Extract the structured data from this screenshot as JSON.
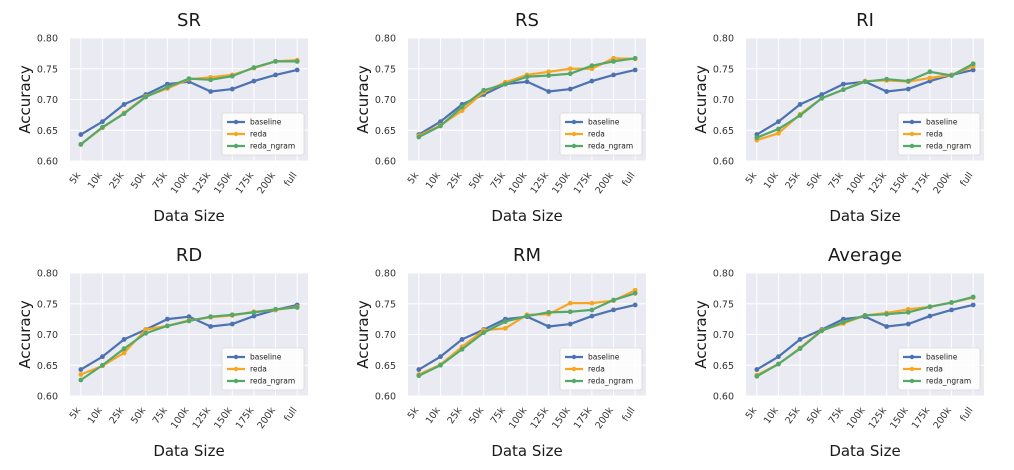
{
  "colors": {
    "background": "#eaeaf2",
    "grid": "#ffffff",
    "baseline": "#4c72b0",
    "reda": "#f6a623",
    "reda_ngram": "#55a868"
  },
  "chart_data": [
    {
      "type": "line",
      "title": "SR",
      "xlabel": "Data Size",
      "ylabel": "Accuracy",
      "ylim": [
        0.6,
        0.8
      ],
      "yticks": [
        "0.60",
        "0.65",
        "0.70",
        "0.75",
        "0.80"
      ],
      "categories": [
        "5k",
        "10k",
        "25k",
        "50k",
        "75k",
        "100k",
        "125k",
        "150k",
        "175k",
        "200k",
        "full"
      ],
      "grid": true,
      "legend": "lower-right",
      "series": [
        {
          "name": "baseline",
          "color": "#4c72b0",
          "values": [
            0.643,
            0.664,
            0.692,
            0.708,
            0.725,
            0.729,
            0.713,
            0.717,
            0.73,
            0.74,
            0.748
          ]
        },
        {
          "name": "reda",
          "color": "#f6a623",
          "values": [
            0.627,
            0.654,
            0.678,
            0.705,
            0.718,
            0.733,
            0.736,
            0.74,
            0.751,
            0.762,
            0.764
          ]
        },
        {
          "name": "reda_ngram",
          "color": "#55a868",
          "values": [
            0.627,
            0.655,
            0.677,
            0.704,
            0.72,
            0.734,
            0.732,
            0.738,
            0.752,
            0.762,
            0.762
          ]
        }
      ]
    },
    {
      "type": "line",
      "title": "RS",
      "xlabel": "Data Size",
      "ylabel": "Accuracy",
      "ylim": [
        0.6,
        0.8
      ],
      "yticks": [
        "0.60",
        "0.65",
        "0.70",
        "0.75",
        "0.80"
      ],
      "categories": [
        "5k",
        "10k",
        "25k",
        "50k",
        "75k",
        "100k",
        "125k",
        "150k",
        "175k",
        "200k",
        "full"
      ],
      "grid": true,
      "legend": "lower-right",
      "series": [
        {
          "name": "baseline",
          "color": "#4c72b0",
          "values": [
            0.643,
            0.664,
            0.692,
            0.708,
            0.725,
            0.729,
            0.713,
            0.717,
            0.73,
            0.74,
            0.748
          ]
        },
        {
          "name": "reda",
          "color": "#f6a623",
          "values": [
            0.641,
            0.658,
            0.682,
            0.712,
            0.728,
            0.74,
            0.745,
            0.75,
            0.75,
            0.767,
            0.766
          ]
        },
        {
          "name": "reda_ngram",
          "color": "#55a868",
          "values": [
            0.639,
            0.657,
            0.688,
            0.715,
            0.725,
            0.737,
            0.739,
            0.742,
            0.755,
            0.762,
            0.767
          ]
        }
      ]
    },
    {
      "type": "line",
      "title": "RI",
      "xlabel": "Data Size",
      "ylabel": "Accuracy",
      "ylim": [
        0.6,
        0.8
      ],
      "yticks": [
        "0.60",
        "0.65",
        "0.70",
        "0.75",
        "0.80"
      ],
      "categories": [
        "5k",
        "10k",
        "25k",
        "50k",
        "75k",
        "100k",
        "125k",
        "150k",
        "175k",
        "200k",
        "full"
      ],
      "grid": true,
      "legend": "lower-right",
      "series": [
        {
          "name": "baseline",
          "color": "#4c72b0",
          "values": [
            0.643,
            0.664,
            0.692,
            0.708,
            0.725,
            0.729,
            0.713,
            0.717,
            0.73,
            0.74,
            0.748
          ]
        },
        {
          "name": "reda",
          "color": "#f6a623",
          "values": [
            0.634,
            0.645,
            0.676,
            0.702,
            0.716,
            0.73,
            0.731,
            0.729,
            0.735,
            0.74,
            0.754
          ]
        },
        {
          "name": "reda_ngram",
          "color": "#55a868",
          "values": [
            0.638,
            0.652,
            0.674,
            0.702,
            0.716,
            0.729,
            0.733,
            0.73,
            0.745,
            0.739,
            0.758
          ]
        }
      ]
    },
    {
      "type": "line",
      "title": "RD",
      "xlabel": "Data Size",
      "ylabel": "Accuracy",
      "ylim": [
        0.6,
        0.8
      ],
      "yticks": [
        "0.60",
        "0.65",
        "0.70",
        "0.75",
        "0.80"
      ],
      "categories": [
        "5k",
        "10k",
        "25k",
        "50k",
        "75k",
        "100k",
        "125k",
        "150k",
        "175k",
        "200k",
        "full"
      ],
      "grid": true,
      "legend": "lower-right",
      "series": [
        {
          "name": "baseline",
          "color": "#4c72b0",
          "values": [
            0.643,
            0.664,
            0.692,
            0.708,
            0.725,
            0.729,
            0.713,
            0.717,
            0.73,
            0.74,
            0.748
          ]
        },
        {
          "name": "reda",
          "color": "#f6a623",
          "values": [
            0.635,
            0.649,
            0.67,
            0.708,
            0.714,
            0.723,
            0.728,
            0.731,
            0.737,
            0.74,
            0.745
          ]
        },
        {
          "name": "reda_ngram",
          "color": "#55a868",
          "values": [
            0.626,
            0.65,
            0.677,
            0.702,
            0.714,
            0.722,
            0.729,
            0.732,
            0.736,
            0.741,
            0.744
          ]
        }
      ]
    },
    {
      "type": "line",
      "title": "RM",
      "xlabel": "Data Size",
      "ylabel": "Accuracy",
      "ylim": [
        0.6,
        0.8
      ],
      "yticks": [
        "0.60",
        "0.65",
        "0.70",
        "0.75",
        "0.80"
      ],
      "categories": [
        "5k",
        "10k",
        "25k",
        "50k",
        "75k",
        "100k",
        "125k",
        "150k",
        "175k",
        "200k",
        "full"
      ],
      "grid": true,
      "legend": "lower-right",
      "series": [
        {
          "name": "baseline",
          "color": "#4c72b0",
          "values": [
            0.643,
            0.664,
            0.692,
            0.708,
            0.725,
            0.729,
            0.713,
            0.717,
            0.73,
            0.74,
            0.748
          ]
        },
        {
          "name": "reda",
          "color": "#f6a623",
          "values": [
            0.635,
            0.651,
            0.68,
            0.707,
            0.71,
            0.732,
            0.733,
            0.751,
            0.751,
            0.755,
            0.772
          ]
        },
        {
          "name": "reda_ngram",
          "color": "#55a868",
          "values": [
            0.633,
            0.65,
            0.676,
            0.703,
            0.721,
            0.73,
            0.736,
            0.737,
            0.74,
            0.756,
            0.767
          ]
        }
      ]
    },
    {
      "type": "line",
      "title": "Average",
      "xlabel": "Data Size",
      "ylabel": "Accuracy",
      "ylim": [
        0.6,
        0.8
      ],
      "yticks": [
        "0.60",
        "0.65",
        "0.70",
        "0.75",
        "0.80"
      ],
      "categories": [
        "5k",
        "10k",
        "25k",
        "50k",
        "75k",
        "100k",
        "125k",
        "150k",
        "175k",
        "200k",
        "full"
      ],
      "grid": true,
      "legend": "lower-right",
      "series": [
        {
          "name": "baseline",
          "color": "#4c72b0",
          "values": [
            0.643,
            0.664,
            0.692,
            0.708,
            0.725,
            0.729,
            0.713,
            0.717,
            0.73,
            0.74,
            0.748
          ]
        },
        {
          "name": "reda",
          "color": "#f6a623",
          "values": [
            0.634,
            0.652,
            0.678,
            0.707,
            0.718,
            0.731,
            0.735,
            0.741,
            0.745,
            0.752,
            0.76
          ]
        },
        {
          "name": "reda_ngram",
          "color": "#55a868",
          "values": [
            0.632,
            0.652,
            0.677,
            0.706,
            0.72,
            0.731,
            0.733,
            0.736,
            0.745,
            0.752,
            0.761
          ]
        }
      ]
    }
  ]
}
